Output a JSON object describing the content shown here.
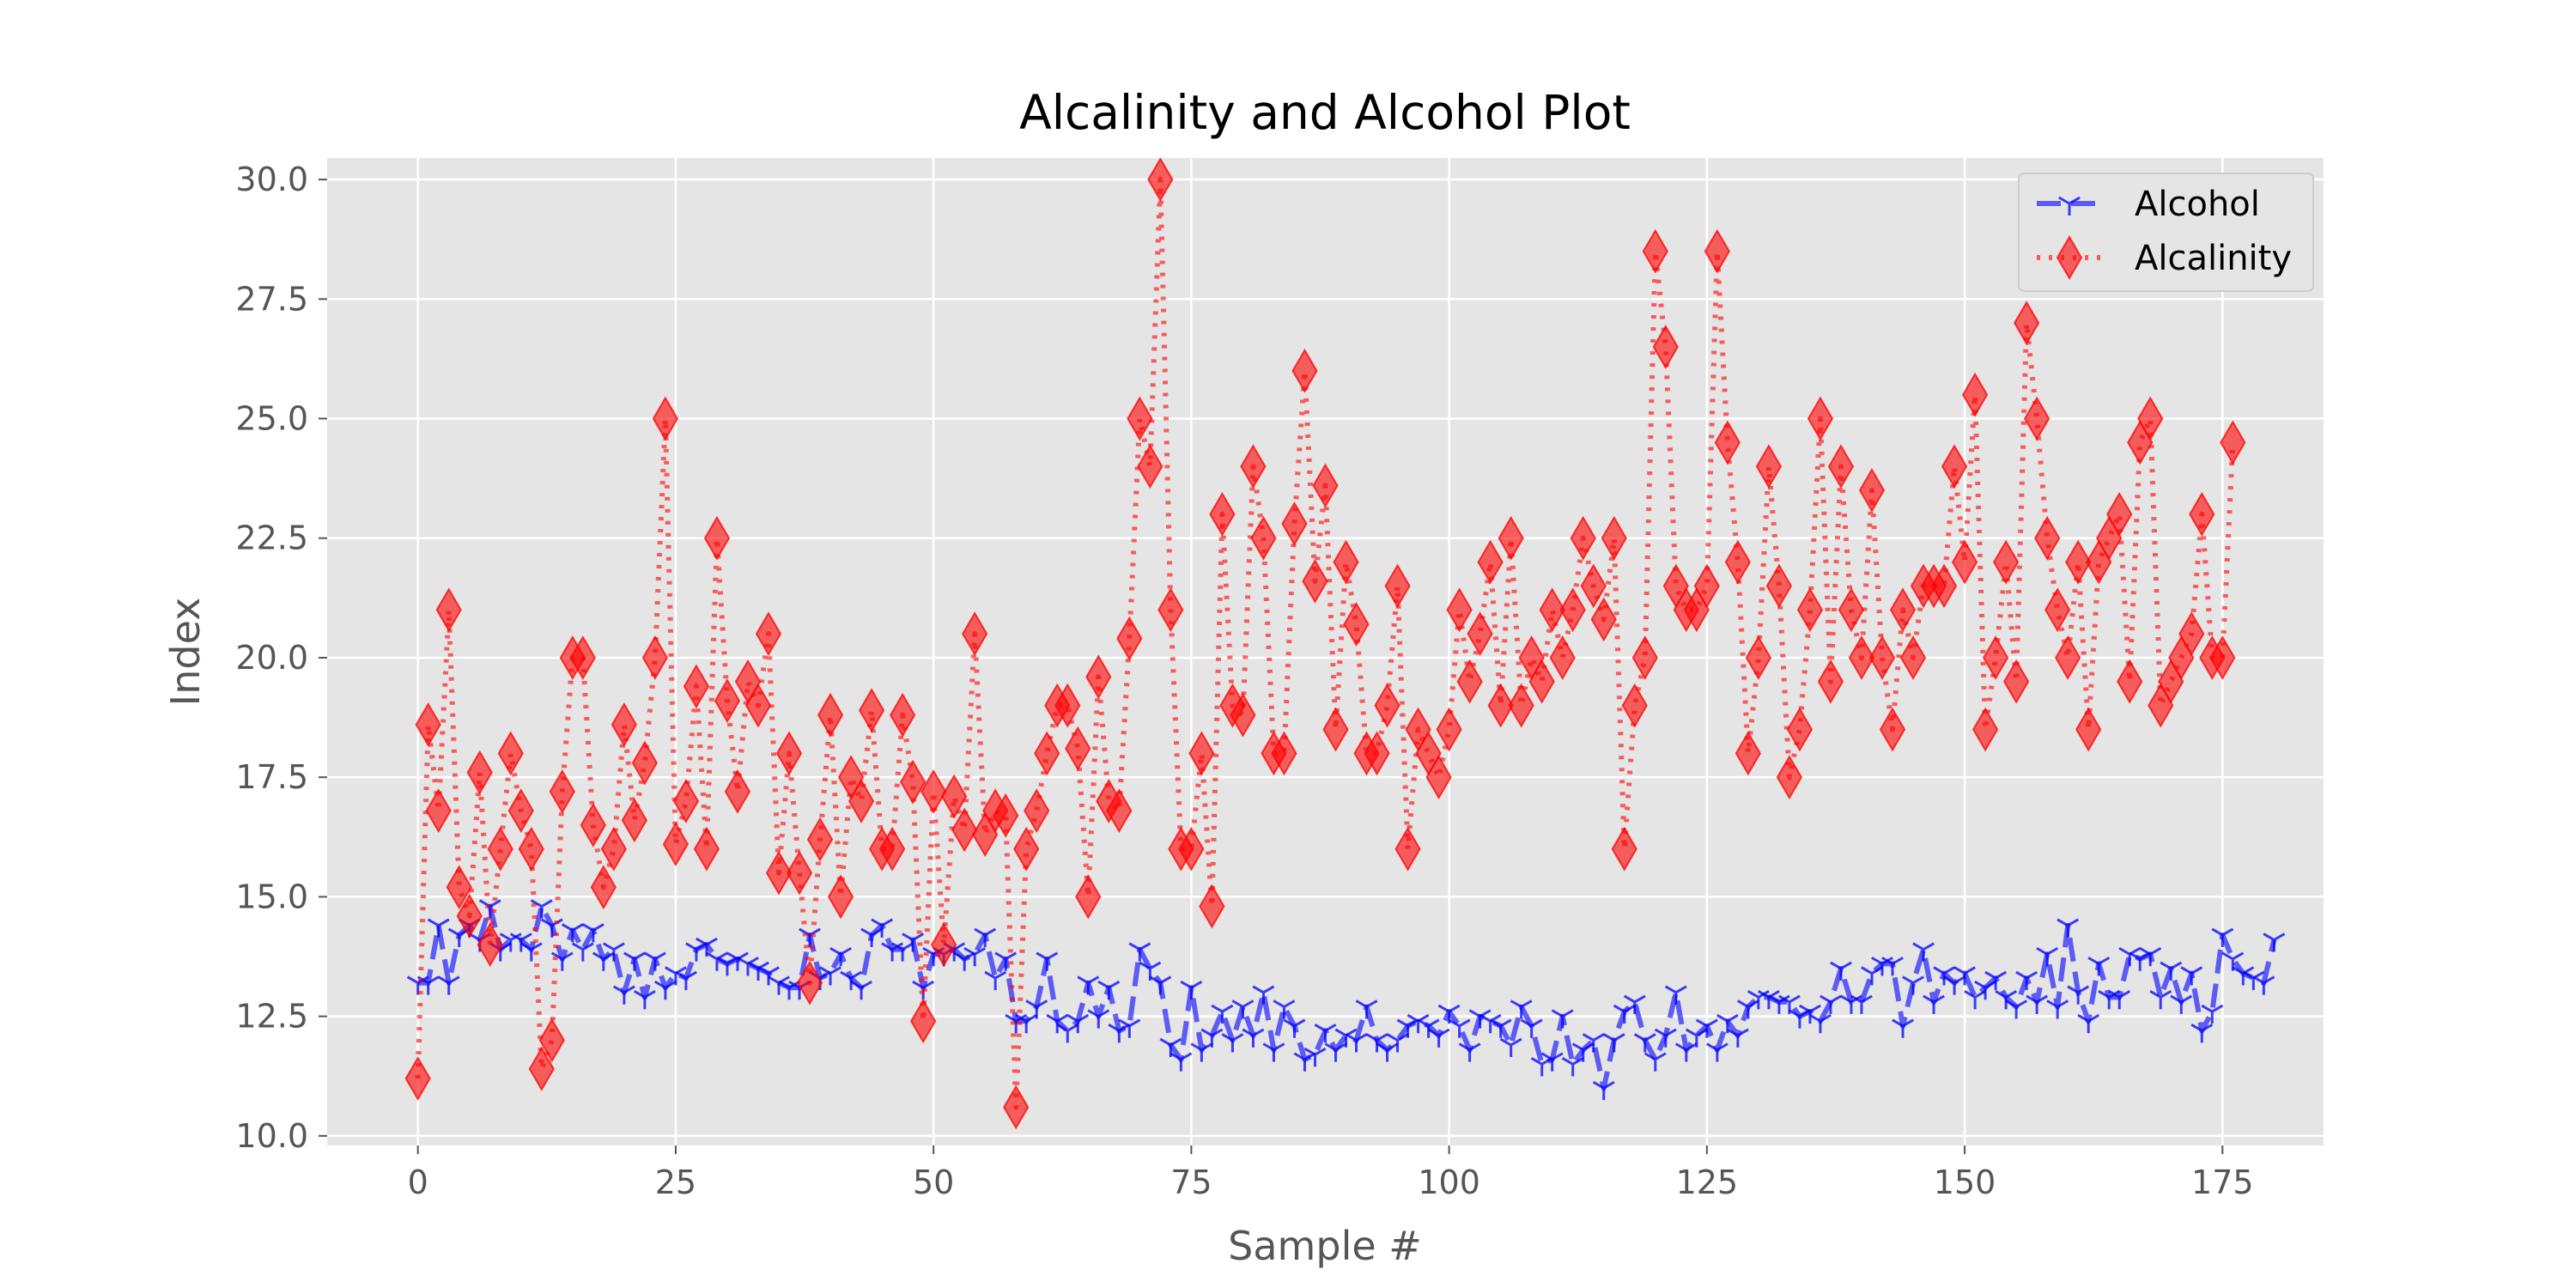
{
  "chart_data": {
    "type": "line",
    "title": "Alcalinity and Alcohol Plot",
    "xlabel": "Sample #",
    "ylabel": "Index",
    "xlim": [
      -8.8,
      184.8
    ],
    "ylim": [
      9.8,
      30.45
    ],
    "xticks": [
      0,
      25,
      50,
      75,
      100,
      125,
      150,
      175
    ],
    "yticks": [
      "10.0",
      "12.5",
      "15.0",
      "17.5",
      "20.0",
      "22.5",
      "25.0",
      "27.5",
      "30.0"
    ],
    "grid": true,
    "legend_position": "top-right",
    "series": [
      {
        "name": "Alcohol",
        "color": "#0000ff",
        "linestyle": "dashed",
        "marker": "tri-down",
        "values": [
          13.2,
          13.2,
          14.4,
          13.2,
          14.2,
          14.4,
          14.1,
          14.8,
          13.9,
          14.1,
          14.1,
          13.9,
          14.8,
          14.4,
          13.7,
          14.3,
          13.9,
          14.3,
          13.7,
          13.9,
          13.0,
          13.7,
          12.9,
          13.7,
          13.1,
          13.4,
          13.3,
          13.9,
          14.0,
          13.7,
          13.6,
          13.7,
          13.6,
          13.5,
          13.4,
          13.2,
          13.1,
          13.1,
          14.2,
          13.3,
          13.4,
          13.8,
          13.3,
          13.1,
          14.2,
          14.4,
          13.9,
          13.9,
          14.1,
          13.1,
          13.8,
          13.8,
          13.9,
          13.7,
          13.8,
          14.2,
          13.3,
          13.7,
          12.4,
          12.4,
          12.7,
          13.7,
          12.4,
          12.2,
          12.4,
          13.2,
          12.5,
          13.1,
          12.2,
          12.3,
          13.9,
          13.5,
          13.2,
          11.9,
          11.6,
          13.1,
          11.8,
          12.1,
          12.6,
          12.0,
          12.7,
          12.1,
          13.0,
          11.8,
          12.7,
          12.3,
          11.6,
          11.7,
          12.2,
          11.8,
          12.1,
          12.0,
          12.7,
          12.0,
          11.8,
          12.0,
          12.3,
          12.4,
          12.3,
          12.1,
          12.6,
          12.3,
          11.8,
          12.5,
          12.4,
          12.3,
          11.9,
          12.7,
          12.3,
          11.5,
          11.6,
          12.5,
          11.5,
          11.8,
          12.0,
          11.0,
          12.0,
          12.6,
          12.8,
          12.0,
          11.6,
          12.1,
          13.0,
          11.8,
          12.1,
          12.3,
          11.8,
          12.4,
          12.1,
          12.7,
          12.9,
          12.9,
          12.8,
          12.8,
          12.5,
          12.6,
          12.4,
          12.8,
          13.5,
          12.8,
          12.8,
          13.4,
          13.6,
          13.6,
          12.3,
          13.2,
          13.9,
          12.8,
          13.4,
          13.2,
          13.4,
          12.9,
          13.1,
          13.3,
          12.9,
          12.7,
          13.3,
          12.8,
          13.8,
          12.7,
          14.4,
          13.0,
          12.4,
          13.6,
          12.9,
          12.9,
          13.8,
          13.7,
          13.8,
          12.9,
          13.5,
          12.8,
          13.4,
          12.2,
          12.6,
          14.2,
          13.7,
          13.4,
          13.3,
          13.2,
          14.1
        ]
      },
      {
        "name": "Alcalinity",
        "color": "#ff0000",
        "linestyle": "dotted",
        "marker": "thin-diamond",
        "values": [
          11.2,
          18.6,
          16.8,
          21.0,
          15.2,
          14.6,
          17.6,
          14.0,
          16.0,
          18.0,
          16.8,
          16.0,
          11.4,
          12.0,
          17.2,
          20.0,
          20.0,
          16.5,
          15.2,
          16.0,
          18.6,
          16.6,
          17.8,
          20.0,
          25.0,
          16.1,
          17.0,
          19.4,
          16.0,
          22.5,
          19.1,
          17.2,
          19.5,
          19.0,
          20.5,
          15.5,
          18.0,
          15.5,
          13.2,
          16.2,
          18.8,
          15.0,
          17.5,
          17.0,
          18.9,
          16.0,
          16.0,
          18.8,
          17.4,
          12.4,
          17.2,
          14.0,
          17.1,
          16.4,
          20.5,
          16.3,
          16.8,
          16.7,
          10.6,
          16.0,
          16.8,
          18.0,
          19.0,
          19.0,
          18.1,
          15.0,
          19.6,
          17.0,
          16.8,
          20.4,
          25.0,
          24.0,
          30.0,
          21.0,
          16.0,
          16.0,
          18.0,
          14.8,
          23.0,
          19.0,
          18.8,
          24.0,
          22.5,
          18.0,
          18.0,
          22.8,
          26.0,
          21.6,
          23.6,
          18.5,
          22.0,
          20.7,
          18.0,
          18.0,
          19.0,
          21.5,
          16.0,
          18.5,
          18.0,
          17.5,
          18.5,
          21.0,
          19.5,
          20.5,
          22.0,
          19.0,
          22.5,
          19.0,
          20.0,
          19.5,
          21.0,
          20.0,
          21.0,
          22.5,
          21.5,
          20.8,
          22.5,
          16.0,
          19.0,
          20.0,
          28.5,
          26.5,
          21.5,
          21.0,
          21.0,
          21.5,
          28.5,
          24.5,
          22.0,
          18.0,
          20.0,
          24.0,
          21.5,
          17.5,
          18.5,
          21.0,
          25.0,
          19.5,
          24.0,
          21.0,
          20.0,
          23.5,
          20.0,
          18.5,
          21.0,
          20.0,
          21.5,
          21.5,
          21.5,
          24.0,
          22.0,
          25.5,
          18.5,
          20.0,
          22.0,
          19.5,
          27.0,
          25.0,
          22.5,
          21.0,
          20.0,
          22.0,
          18.5,
          22.0,
          22.5,
          23.0,
          19.5,
          24.5,
          25.0,
          19.0,
          19.5,
          20.0,
          20.5,
          23.0,
          20.0,
          20.0,
          24.5
        ]
      }
    ]
  }
}
